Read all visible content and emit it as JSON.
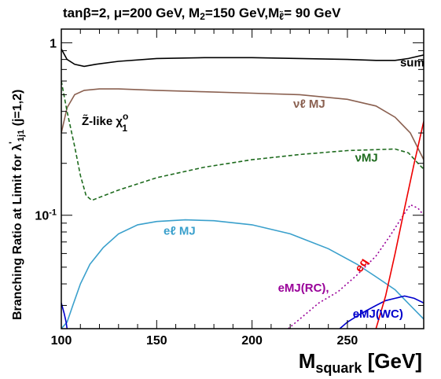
{
  "chart_data": {
    "type": "line",
    "title": "tanβ=2, μ=200 GeV, M2=150 GeV,Mℓ̃= 90 GeV",
    "title_parts": {
      "p1": "tan",
      "beta": "β",
      "p2": "=2, ",
      "mu": "μ",
      "p3": "=200 GeV, M",
      "sub2": "2",
      "p4": "=150 GeV,M",
      "subl": "ℓ̃",
      "p5": "= 90 GeV"
    },
    "xlabel": "Msquark [GeV]",
    "xlabel_parts": {
      "main": "M",
      "sub": "squark",
      "unit": " [GeV]"
    },
    "ylabel": "Branching Ratio at Limit for λ'1j1 (j=1,2)",
    "ylabel_parts": {
      "main": "Branching Ratio at Limit for  λ",
      "prime": "'",
      "sub": "1j1",
      "tail": "  (j=1,2)"
    },
    "xlim": [
      100,
      290
    ],
    "ylim": [
      0.022,
      1.2
    ],
    "yscale": "log",
    "x_ticks": [
      {
        "value": 100,
        "label": "100"
      },
      {
        "value": 150,
        "label": "150"
      },
      {
        "value": 200,
        "label": "200"
      },
      {
        "value": 250,
        "label": "250"
      }
    ],
    "y_ticks": [
      {
        "value": 1,
        "label": "1"
      },
      {
        "value": 0.1,
        "label": "10",
        "exp": "-1"
      }
    ],
    "annotation": {
      "main": "Z̃-like  χ",
      "sup": "o",
      "sub": "1"
    },
    "series": [
      {
        "name": "sum",
        "color": "#000000",
        "dash": "",
        "x": [
          100,
          103,
          107,
          112,
          118,
          130,
          150,
          175,
          200,
          225,
          250,
          265,
          275,
          282,
          290
        ],
        "y": [
          0.92,
          0.8,
          0.75,
          0.73,
          0.75,
          0.78,
          0.81,
          0.82,
          0.82,
          0.81,
          0.8,
          0.79,
          0.79,
          0.81,
          0.85
        ]
      },
      {
        "name": "νℓ MJ",
        "color": "#8a6050",
        "dash": "",
        "x": [
          100,
          103,
          107,
          112,
          120,
          130,
          150,
          175,
          200,
          225,
          250,
          265,
          275,
          283,
          290
        ],
        "y": [
          0.3,
          0.42,
          0.5,
          0.53,
          0.54,
          0.54,
          0.53,
          0.52,
          0.51,
          0.5,
          0.47,
          0.43,
          0.37,
          0.3,
          0.21
        ]
      },
      {
        "name": "νMJ",
        "color": "#1e6b1e",
        "dash": "5,3",
        "x": [
          100,
          103,
          107,
          110,
          113,
          116,
          120,
          130,
          150,
          175,
          200,
          225,
          250,
          265,
          275,
          282,
          287,
          290
        ],
        "y": [
          0.6,
          0.4,
          0.25,
          0.17,
          0.13,
          0.122,
          0.127,
          0.14,
          0.165,
          0.19,
          0.21,
          0.225,
          0.237,
          0.24,
          0.242,
          0.23,
          0.2,
          0.185
        ]
      },
      {
        "name": "eℓ MJ",
        "color": "#3aa0cc",
        "dash": "",
        "x": [
          100,
          103,
          106,
          110,
          115,
          122,
          130,
          140,
          150,
          165,
          180,
          200,
          220,
          240,
          255,
          265,
          275,
          283,
          290
        ],
        "y": [
          0.022,
          0.024,
          0.03,
          0.04,
          0.052,
          0.065,
          0.078,
          0.088,
          0.092,
          0.094,
          0.093,
          0.088,
          0.078,
          0.064,
          0.052,
          0.044,
          0.037,
          0.03,
          0.025
        ]
      },
      {
        "name": "eMJ(RC),",
        "color": "#990099",
        "dash": "2,3",
        "x": [
          219,
          225,
          235,
          245,
          255,
          265,
          272,
          278,
          283,
          287,
          290
        ],
        "y": [
          0.022,
          0.025,
          0.031,
          0.036,
          0.045,
          0.058,
          0.075,
          0.095,
          0.115,
          0.11,
          0.1
        ]
      },
      {
        "name": "eMJ(WC)",
        "color": "#0000cc",
        "dash": "",
        "x": [
          246,
          250,
          255,
          260,
          265,
          270,
          275,
          280,
          285,
          290
        ],
        "y": [
          0.022,
          0.024,
          0.026,
          0.028,
          0.03,
          0.032,
          0.033,
          0.034,
          0.033,
          0.031
        ]
      },
      {
        "name": "eq",
        "color": "#ee0000",
        "dash": "",
        "x": [
          265,
          270,
          275,
          280,
          285,
          290
        ],
        "y": [
          0.022,
          0.034,
          0.06,
          0.11,
          0.2,
          0.35
        ]
      },
      {
        "name": "",
        "color": "#0000cc",
        "dash": "",
        "x": [
          100,
          101.5,
          102.5,
          103
        ],
        "y": [
          0.031,
          0.027,
          0.024,
          0.022
        ]
      }
    ],
    "labels": [
      {
        "text": "sum",
        "x": 284,
        "y": 0.73,
        "color": "#000000",
        "rotate": 0
      },
      {
        "text": "νℓ MJ",
        "x": 230,
        "y": 0.42,
        "color": "#8a6050",
        "rotate": 0
      },
      {
        "text": "νMJ",
        "x": 260,
        "y": 0.205,
        "color": "#1e6b1e",
        "rotate": 0
      },
      {
        "text": "eℓ MJ",
        "x": 162,
        "y": 0.077,
        "color": "#3aa0cc",
        "rotate": 0
      },
      {
        "text": "eMJ(RC),",
        "x": 227,
        "y": 0.036,
        "color": "#990099",
        "rotate": 0
      },
      {
        "text": "eMJ(WC)",
        "x": 266,
        "y": 0.0255,
        "color": "#0000cc",
        "rotate": 0
      },
      {
        "text": "eq",
        "x": 259,
        "y": 0.05,
        "color": "#ee0000",
        "rotate": -58
      }
    ]
  }
}
